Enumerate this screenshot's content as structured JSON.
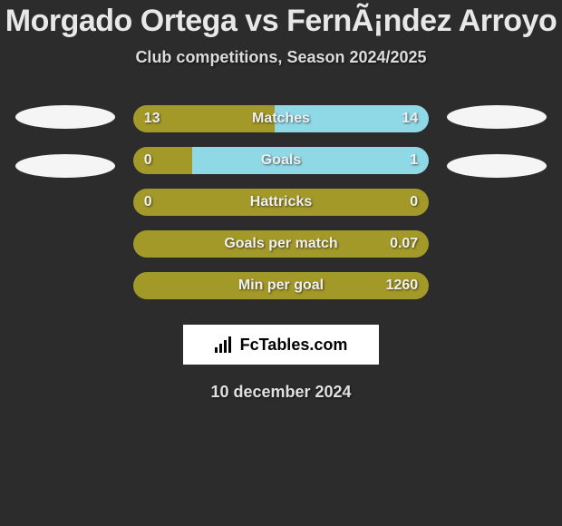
{
  "title": "Morgado Ortega vs FernÃ¡ndez Arroyo",
  "subtitle": "Club competitions, Season 2024/2025",
  "date": "10 december 2024",
  "logo_text": "FcTables.com",
  "colors": {
    "background": "#2c2c2c",
    "bar_left": "#a39928",
    "bar_right": "#8fd8e6",
    "ellipse": "#f5f5f5",
    "text": "#e8e8e8"
  },
  "stats": [
    {
      "label": "Matches",
      "left_val": "13",
      "right_val": "14",
      "left_pct": 48
    },
    {
      "label": "Goals",
      "left_val": "0",
      "right_val": "1",
      "left_pct": 20
    },
    {
      "label": "Hattricks",
      "left_val": "0",
      "right_val": "0",
      "left_pct": 100
    },
    {
      "label": "Goals per match",
      "left_val": "",
      "right_val": "0.07",
      "left_pct": 100
    },
    {
      "label": "Min per goal",
      "left_val": "",
      "right_val": "1260",
      "left_pct": 100
    }
  ],
  "left_ellipses": 2,
  "right_ellipses": 2
}
